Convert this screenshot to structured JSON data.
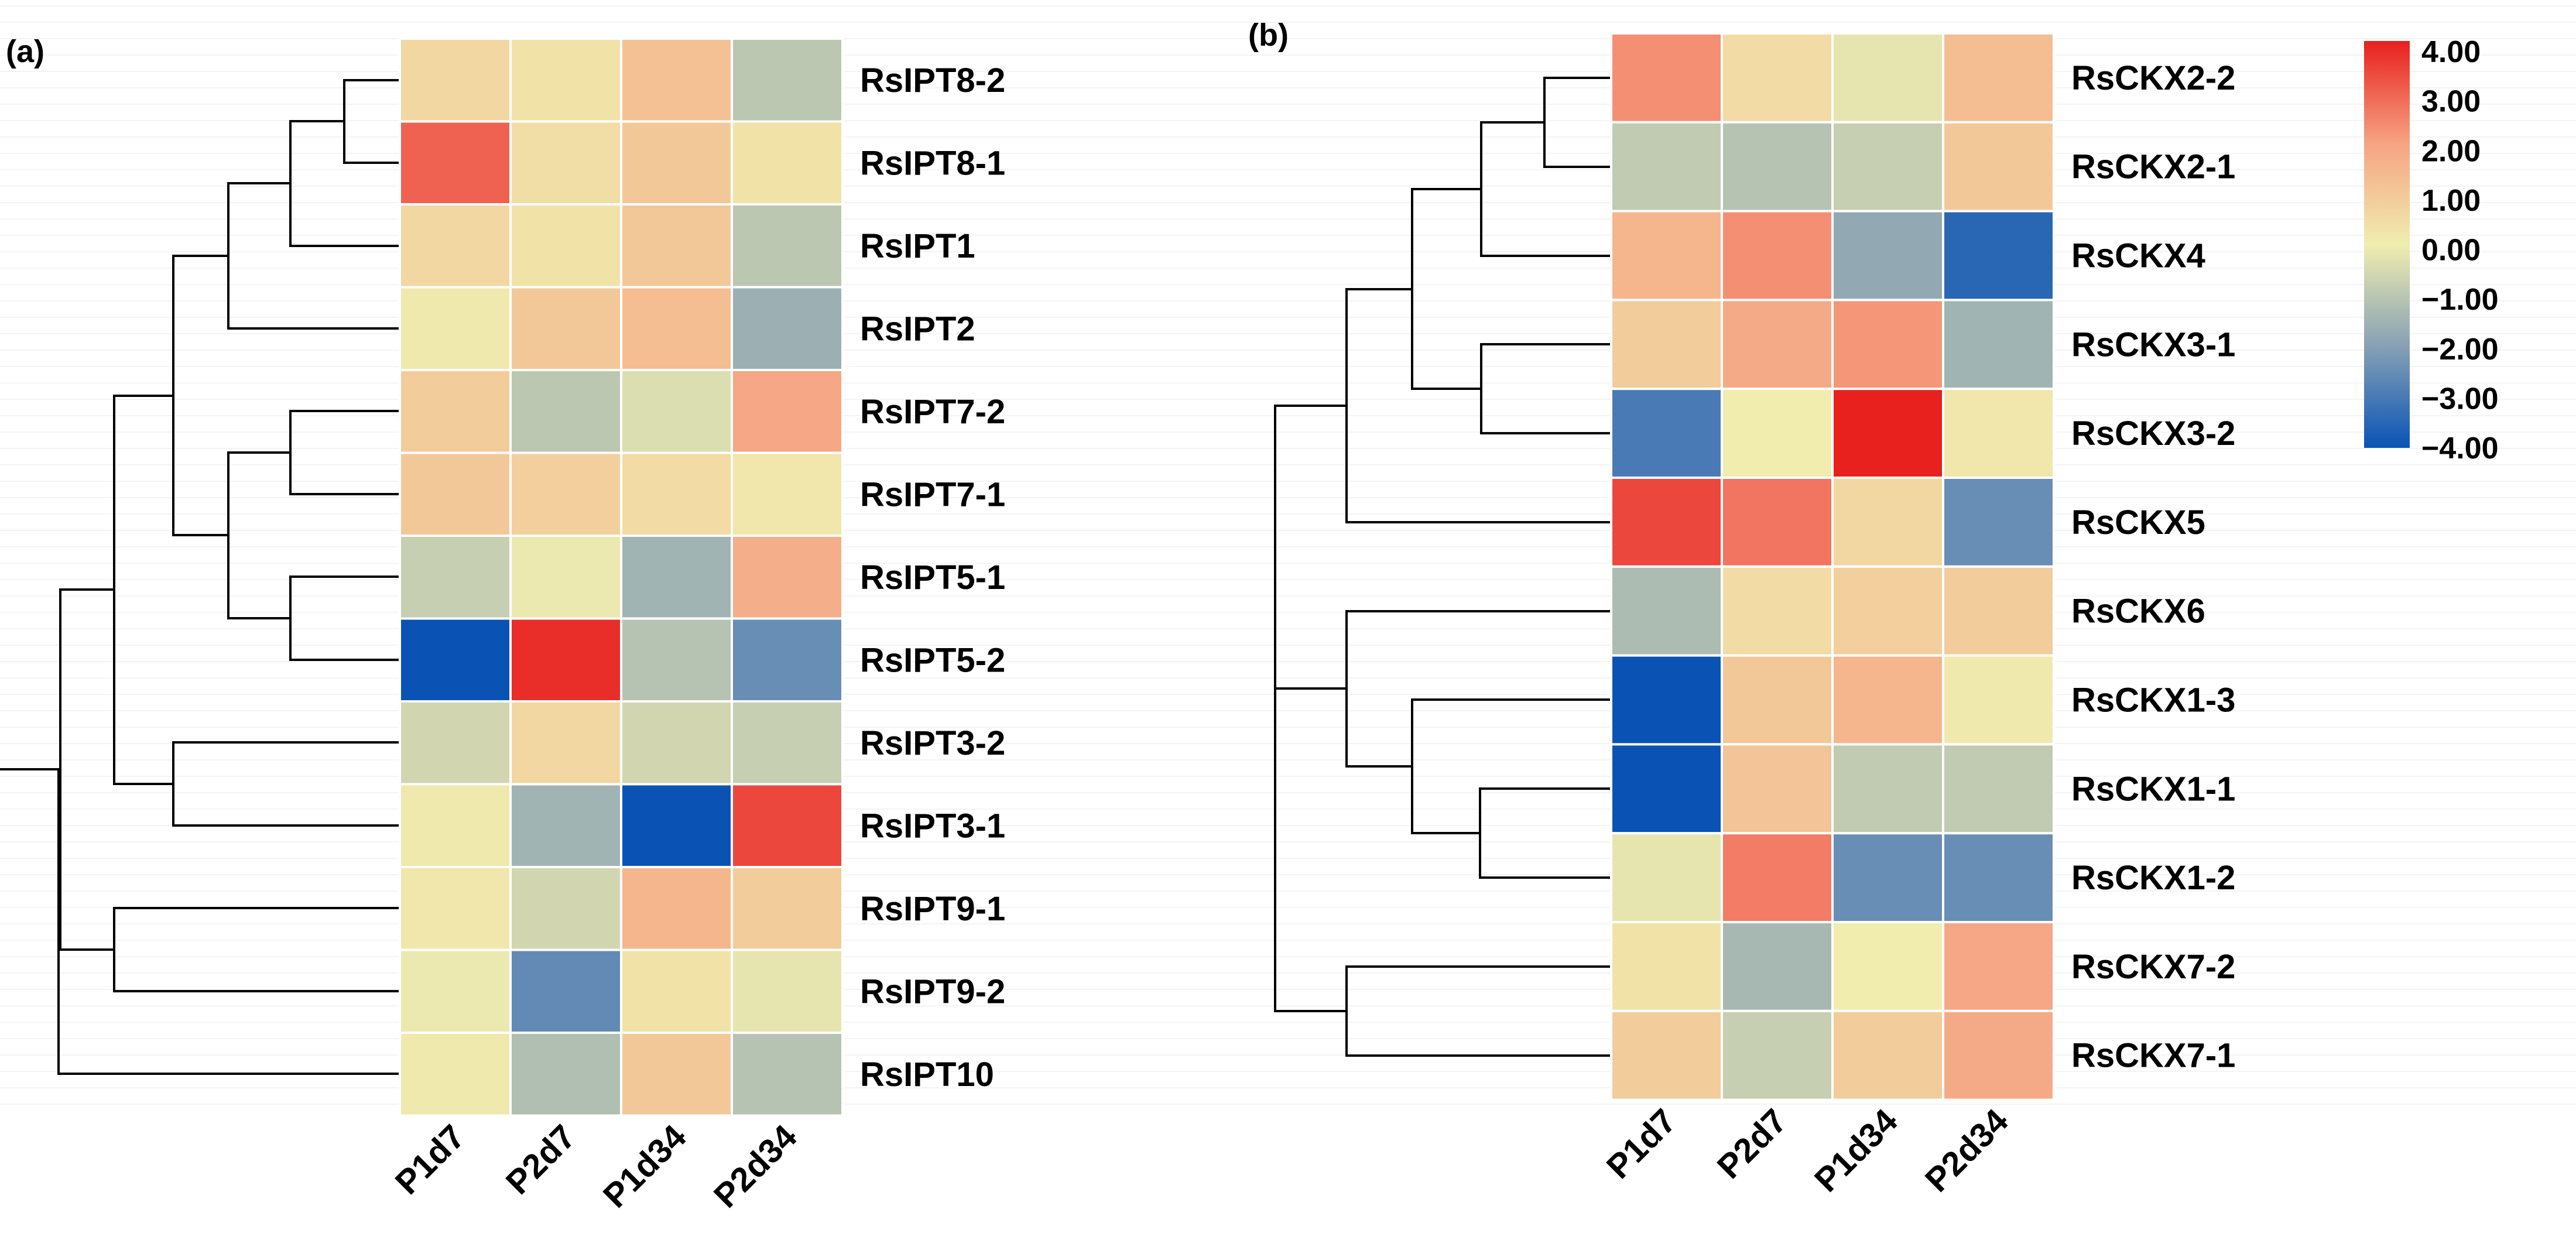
{
  "chart_data": [
    {
      "type": "heatmap",
      "panel_label": "(a)",
      "title": "",
      "rows": [
        "RsIPT8-2",
        "RsIPT8-1",
        "RsIPT1",
        "RsIPT2",
        "RsIPT7-2",
        "RsIPT7-1",
        "RsIPT5-1",
        "RsIPT5-2",
        "RsIPT3-2",
        "RsIPT3-1",
        "RsIPT9-1",
        "RsIPT9-2",
        "RsIPT10"
      ],
      "columns": [
        "P1d7",
        "P2d7",
        "P1d34",
        "P2d34"
      ],
      "values": [
        [
          0.6,
          0.3,
          1.2,
          -1.0
        ],
        [
          3.0,
          0.4,
          1.0,
          0.3
        ],
        [
          0.6,
          0.3,
          1.0,
          -1.0
        ],
        [
          0.1,
          1.0,
          1.3,
          -1.6
        ],
        [
          0.9,
          -1.0,
          -0.4,
          1.9
        ],
        [
          1.0,
          0.8,
          0.5,
          0.2
        ],
        [
          -0.8,
          -0.1,
          -1.5,
          1.7
        ],
        [
          -4.0,
          3.8,
          -1.1,
          -2.5
        ],
        [
          -0.6,
          0.6,
          -0.6,
          -0.8
        ],
        [
          0.1,
          -1.5,
          -4.0,
          3.4
        ],
        [
          0.2,
          -0.6,
          1.5,
          0.9
        ],
        [
          -0.1,
          -2.6,
          0.3,
          -0.2
        ],
        [
          0.1,
          -1.2,
          1.0,
          -1.1
        ]
      ],
      "color_range": [
        -4,
        4
      ],
      "dendrogram": "rows (left side)"
    },
    {
      "type": "heatmap",
      "panel_label": "(b)",
      "title": "",
      "rows": [
        "RsCKX2-2",
        "RsCKX2-1",
        "RsCKX4",
        "RsCKX3-1",
        "RsCKX3-2",
        "RsCKX5",
        "RsCKX6",
        "RsCKX1-3",
        "RsCKX1-1",
        "RsCKX1-2",
        "RsCKX7-2",
        "RsCKX7-1"
      ],
      "columns": [
        "P1d7",
        "P2d7",
        "P1d34",
        "P2d34"
      ],
      "values": [
        [
          2.3,
          0.5,
          -0.2,
          1.3
        ],
        [
          -0.9,
          -1.1,
          -0.8,
          1.0
        ],
        [
          1.5,
          2.3,
          -1.8,
          -3.5
        ],
        [
          0.9,
          1.8,
          2.2,
          -1.5
        ],
        [
          -3.0,
          0.0,
          4.0,
          0.2
        ],
        [
          3.4,
          2.7,
          0.6,
          -2.5
        ],
        [
          -1.3,
          0.5,
          0.8,
          0.9
        ],
        [
          -4.0,
          1.0,
          1.5,
          0.1
        ],
        [
          -4.0,
          1.1,
          -0.9,
          -0.9
        ],
        [
          -0.2,
          2.6,
          -2.5,
          -2.5
        ],
        [
          0.3,
          -1.4,
          0.0,
          1.9
        ],
        [
          0.9,
          -0.8,
          0.9,
          1.8
        ]
      ],
      "color_range": [
        -4,
        4
      ],
      "dendrogram": "rows (left side)"
    }
  ],
  "colorbar": {
    "ticks": [
      "4.00",
      "3.00",
      "2.00",
      "1.00",
      "0.00",
      "−1.00",
      "−2.00",
      "−3.00",
      "−4.00"
    ],
    "colors": {
      "high": "#e8201e",
      "mid": "#f0edaf",
      "low": "#0a53b5"
    }
  }
}
